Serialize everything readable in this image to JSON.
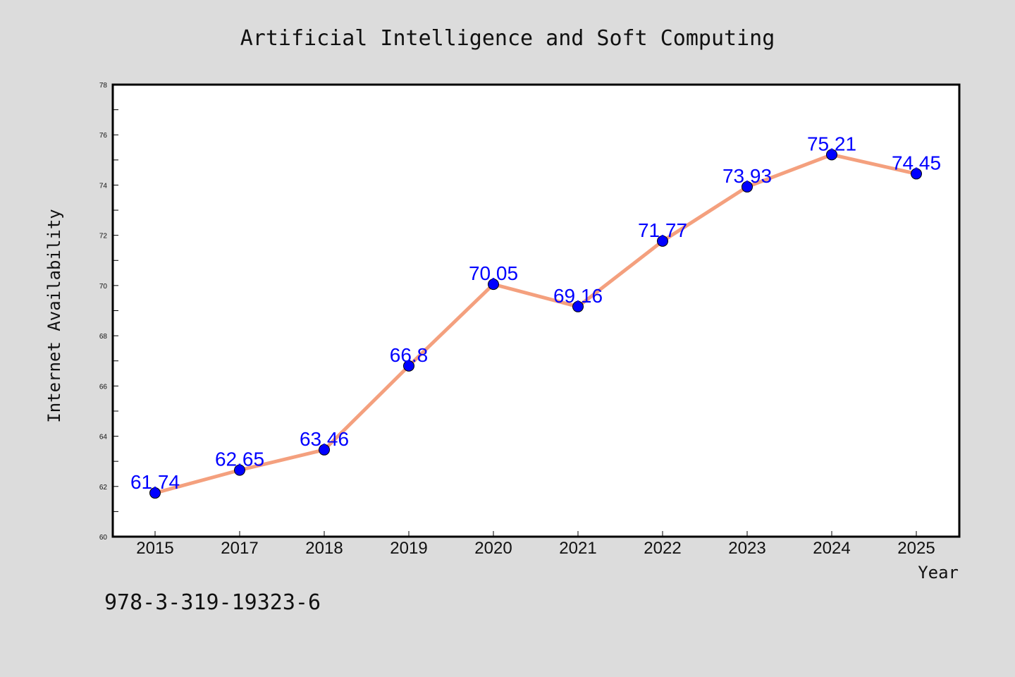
{
  "chart_data": {
    "type": "line",
    "title": "Artificial Intelligence and Soft Computing",
    "xlabel": "Year",
    "ylabel": "Internet Availability",
    "categories": [
      "2015",
      "2017",
      "2018",
      "2019",
      "2020",
      "2021",
      "2022",
      "2023",
      "2024",
      "2025"
    ],
    "series": [
      {
        "values": [
          61.74,
          62.65,
          63.46,
          66.8,
          70.05,
          69.16,
          71.77,
          73.93,
          75.21,
          74.45
        ],
        "line_color": "#f4a07e",
        "marker_color": "#0000ff"
      }
    ],
    "data_labels": [
      "61.74",
      "62.65",
      "63.46",
      "66.8",
      "70.05",
      "69.16",
      "71.77",
      "73.93",
      "75.21",
      "74.45"
    ],
    "ylim": [
      60,
      78
    ],
    "y_ticks": [
      "60",
      "62",
      "64",
      "66",
      "68",
      "70",
      "72",
      "74",
      "76",
      "78"
    ],
    "grid": false,
    "legend": "none",
    "plot_background": "#ffffff",
    "figure_background": "#dcdcdc"
  },
  "footer": {
    "text": "978-3-319-19323-6"
  }
}
